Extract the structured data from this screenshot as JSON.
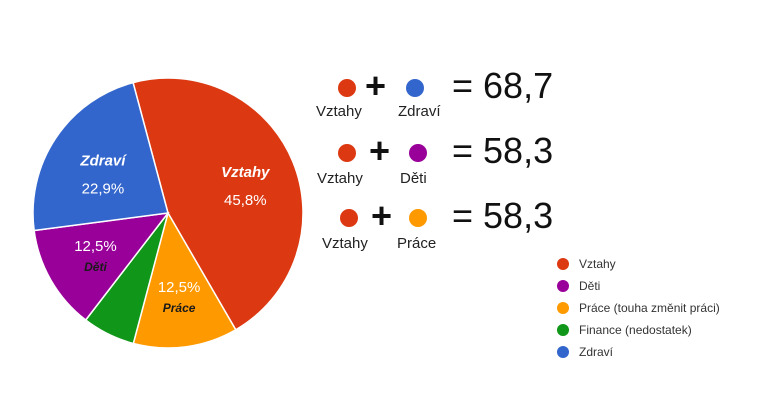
{
  "colors": {
    "Vztahy": "#dc3912",
    "Děti": "#990099",
    "Práce": "#ff9900",
    "Finance": "#109618",
    "Zdraví": "#3366cc"
  },
  "chart_data": {
    "type": "pie",
    "slices": [
      {
        "key": "Vztahy",
        "value": 45.8,
        "label": "Vztahy",
        "pct_label": "45,8%",
        "color": "#dc3912"
      },
      {
        "key": "Práce",
        "value": 12.5,
        "label": "Práce",
        "pct_label": "12,5%",
        "color": "#ff9900"
      },
      {
        "key": "Finance",
        "value": 6.3,
        "label": "",
        "pct_label": "",
        "color": "#109618"
      },
      {
        "key": "Děti",
        "value": 12.5,
        "label": "Děti",
        "pct_label": "12,5%",
        "color": "#990099"
      },
      {
        "key": "Zdraví",
        "value": 22.9,
        "label": "Zdraví",
        "pct_label": "22,9%",
        "color": "#3366cc"
      }
    ],
    "legend": [
      {
        "label": "Vztahy",
        "color": "#dc3912"
      },
      {
        "label": "Děti",
        "color": "#990099"
      },
      {
        "label": "Práce (touha změnit práci)",
        "color": "#ff9900"
      },
      {
        "label": "Finance (nedostatek)",
        "color": "#109618"
      },
      {
        "label": "Zdraví",
        "color": "#3366cc"
      }
    ],
    "legend_position": "bottom-right"
  },
  "equations": [
    {
      "a": "Vztahy",
      "a_color": "#dc3912",
      "plus": "+",
      "b": "Zdraví",
      "b_color": "#3366cc",
      "result": "= 68,7"
    },
    {
      "a": "Vztahy",
      "a_color": "#dc3912",
      "plus": "+",
      "b": "Děti",
      "b_color": "#990099",
      "result": "= 58,3"
    },
    {
      "a": "Vztahy",
      "a_color": "#dc3912",
      "plus": "+",
      "b": "Práce",
      "b_color": "#ff9900",
      "result": "= 58,3"
    }
  ]
}
